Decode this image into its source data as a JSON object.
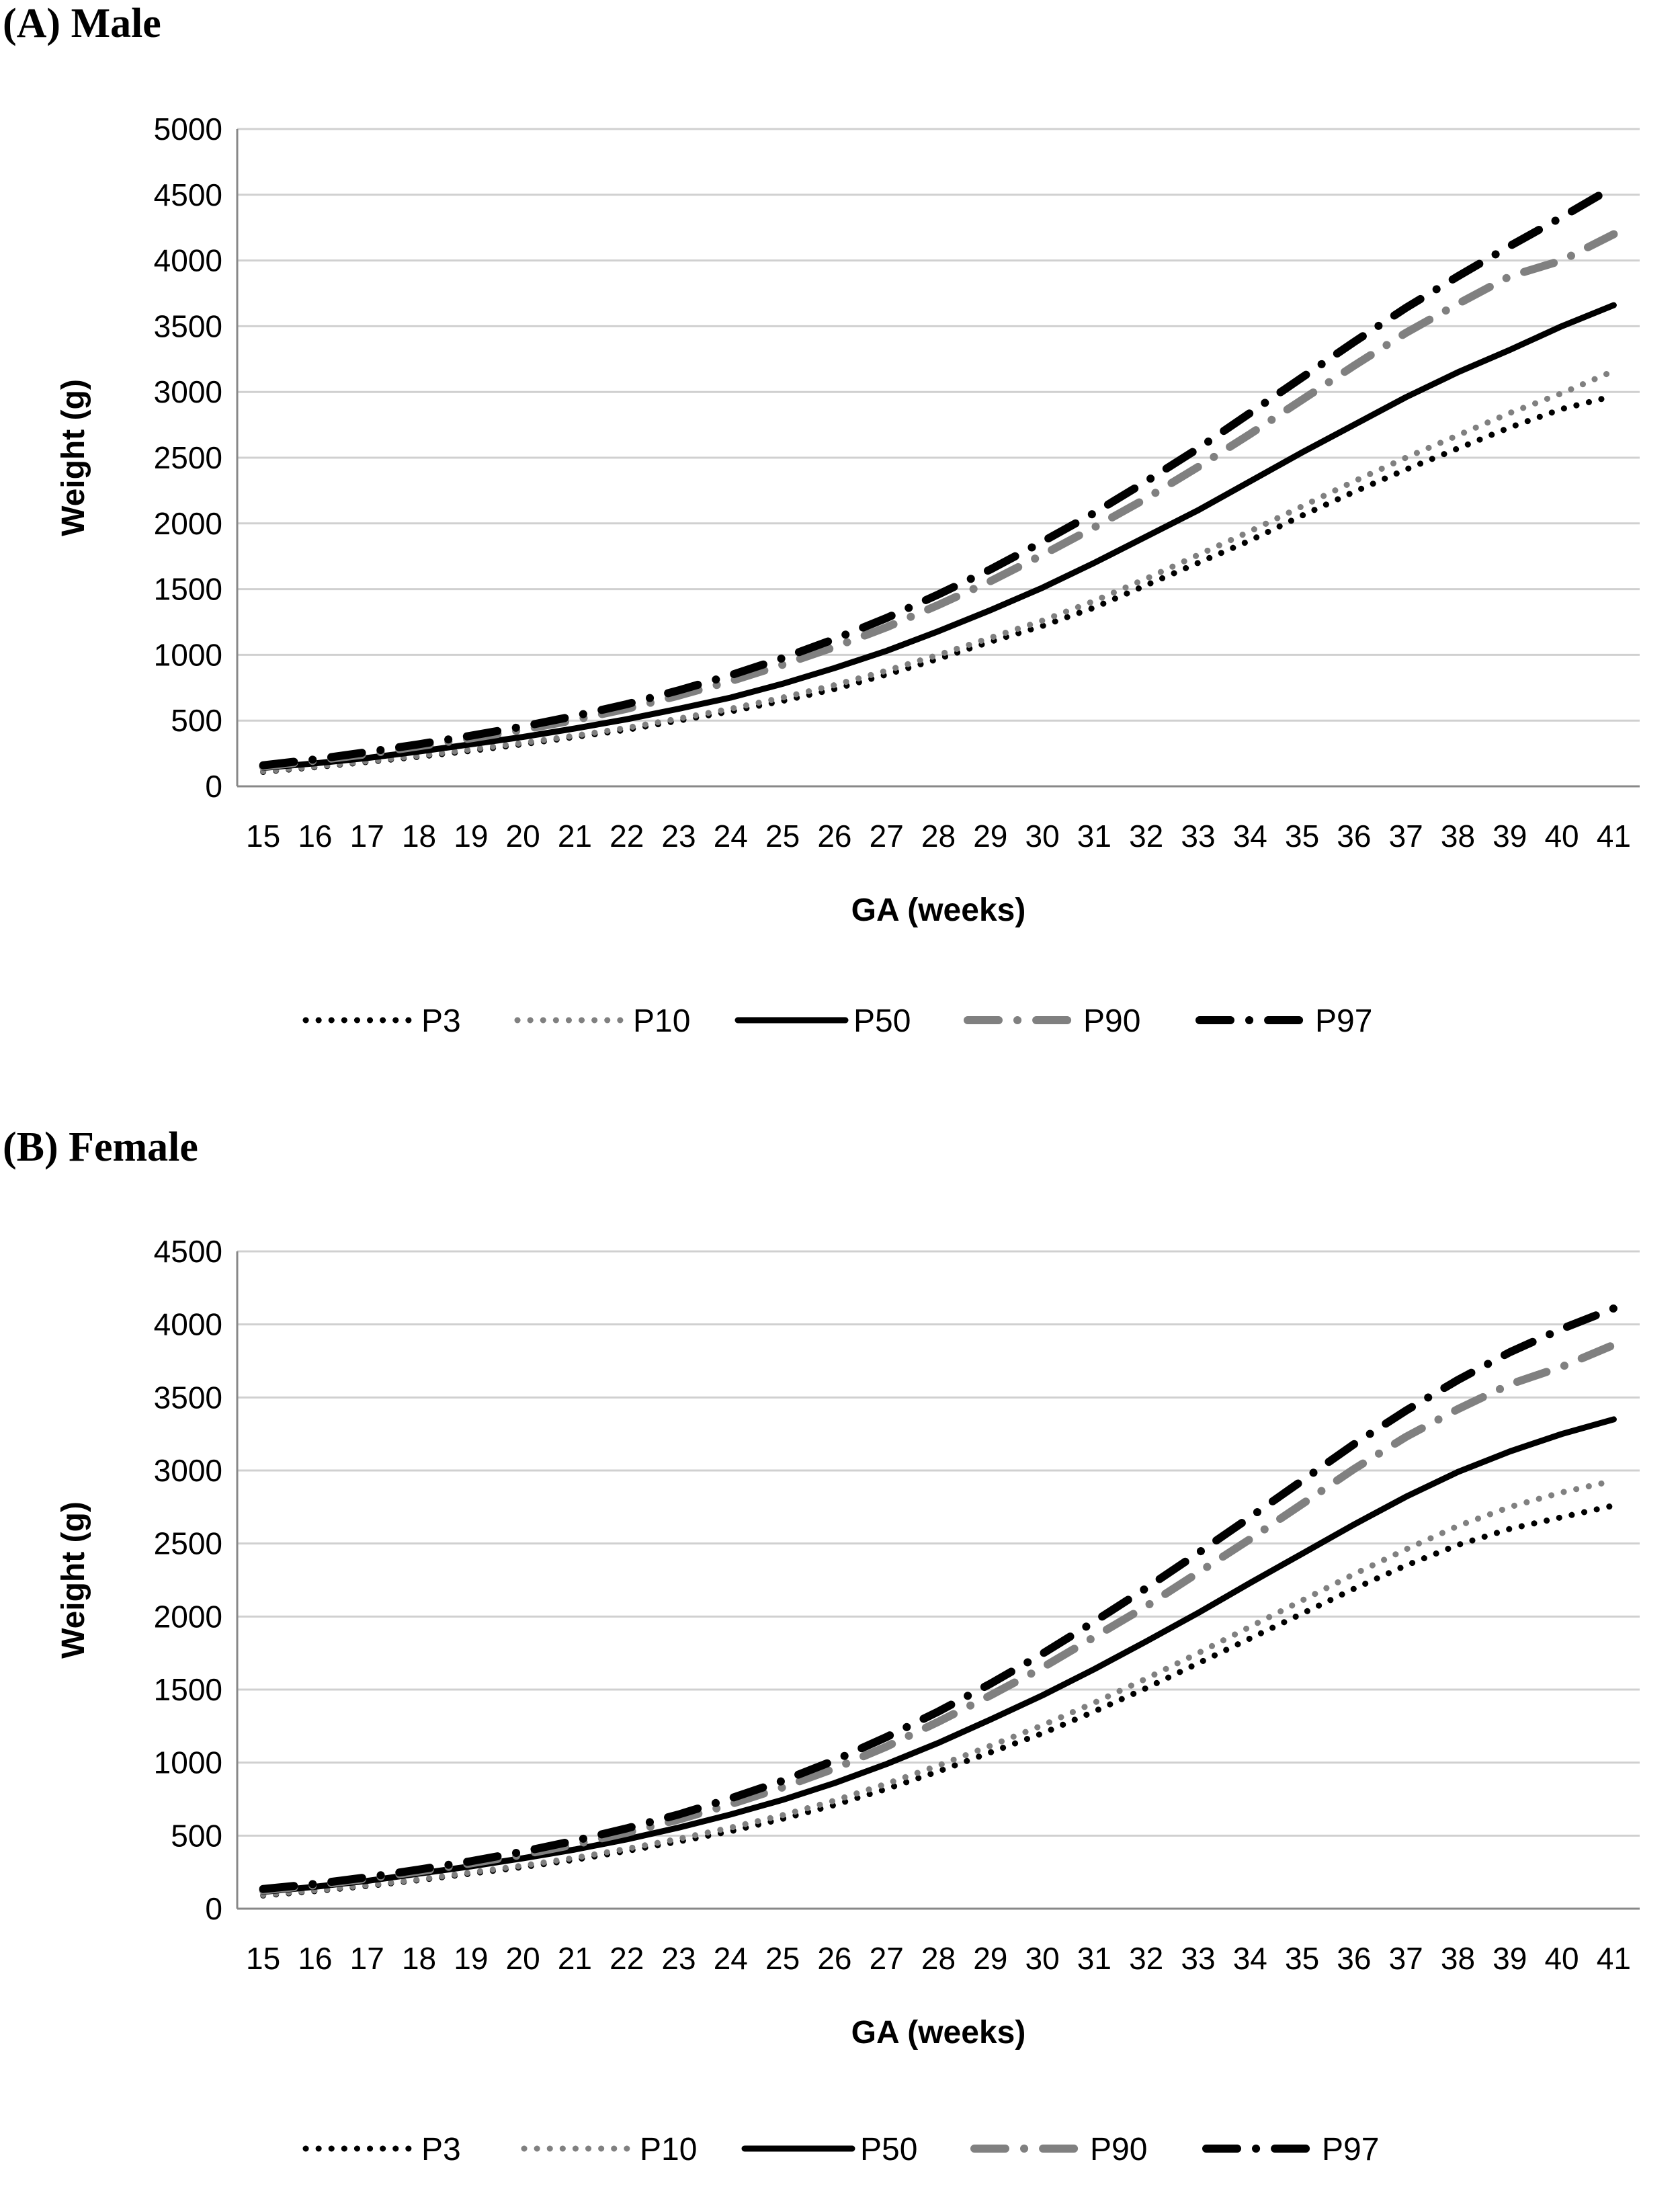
{
  "panels": [
    {
      "title": "(A) Male"
    },
    {
      "title": "(B) Female"
    }
  ],
  "chart_data": [
    {
      "type": "line",
      "title": "(A) Male",
      "xlabel": "GA (weeks)",
      "ylabel": "Weight (g)",
      "ylim": [
        0,
        5000
      ],
      "yticks": [
        0,
        500,
        1000,
        1500,
        2000,
        2500,
        3000,
        3500,
        4000,
        4500,
        5000
      ],
      "x": [
        15,
        16,
        17,
        18,
        19,
        20,
        21,
        22,
        23,
        24,
        25,
        26,
        27,
        28,
        29,
        30,
        31,
        32,
        33,
        34,
        35,
        36,
        37,
        38,
        39,
        40,
        41
      ],
      "grid": true,
      "legend_position": "bottom",
      "series": [
        {
          "name": "P3",
          "color": "#000000",
          "style": "dotted",
          "values": [
            110,
            145,
            185,
            225,
            270,
            320,
            375,
            430,
            500,
            570,
            650,
            740,
            850,
            970,
            1100,
            1220,
            1360,
            1530,
            1700,
            1870,
            2060,
            2240,
            2410,
            2570,
            2730,
            2870,
            2970
          ]
        },
        {
          "name": "P10",
          "color": "#808080",
          "style": "dotted",
          "values": [
            115,
            150,
            190,
            232,
            280,
            330,
            385,
            445,
            515,
            590,
            675,
            770,
            880,
            1000,
            1130,
            1260,
            1410,
            1580,
            1760,
            1940,
            2130,
            2320,
            2500,
            2670,
            2840,
            2990,
            3160
          ]
        },
        {
          "name": "P50",
          "color": "#000000",
          "style": "solid",
          "values": [
            140,
            175,
            215,
            265,
            320,
            375,
            440,
            510,
            590,
            675,
            780,
            900,
            1030,
            1180,
            1340,
            1510,
            1700,
            1900,
            2100,
            2320,
            2540,
            2750,
            2960,
            3150,
            3320,
            3500,
            3660
          ]
        },
        {
          "name": "P90",
          "color": "#808080",
          "style": "dashdot",
          "values": [
            150,
            195,
            245,
            305,
            365,
            430,
            505,
            590,
            690,
            800,
            925,
            1060,
            1210,
            1380,
            1560,
            1760,
            1970,
            2190,
            2430,
            2680,
            2940,
            3200,
            3450,
            3670,
            3880,
            4000,
            4200
          ]
        },
        {
          "name": "P97",
          "color": "#000000",
          "style": "dashdot",
          "values": [
            160,
            205,
            260,
            320,
            385,
            455,
            535,
            625,
            730,
            845,
            975,
            1120,
            1280,
            1460,
            1650,
            1860,
            2080,
            2320,
            2570,
            2840,
            3110,
            3380,
            3640,
            3880,
            4110,
            4330,
            4560
          ]
        }
      ]
    },
    {
      "type": "line",
      "title": "(B) Female",
      "xlabel": "GA (weeks)",
      "ylabel": "Weight (g)",
      "ylim": [
        0,
        4500
      ],
      "yticks": [
        0,
        500,
        1000,
        1500,
        2000,
        2500,
        3000,
        3500,
        4000,
        4500
      ],
      "x": [
        15,
        16,
        17,
        18,
        19,
        20,
        21,
        22,
        23,
        24,
        25,
        26,
        27,
        28,
        29,
        30,
        31,
        32,
        33,
        34,
        35,
        36,
        37,
        38,
        39,
        40,
        41
      ],
      "grid": true,
      "legend_position": "bottom",
      "series": [
        {
          "name": "P3",
          "color": "#000000",
          "style": "dotted",
          "values": [
            90,
            120,
            155,
            195,
            240,
            285,
            335,
            395,
            460,
            530,
            615,
            710,
            820,
            940,
            1070,
            1200,
            1350,
            1510,
            1680,
            1850,
            2020,
            2190,
            2350,
            2490,
            2600,
            2680,
            2760
          ]
        },
        {
          "name": "P10",
          "color": "#808080",
          "style": "dotted",
          "values": [
            95,
            125,
            160,
            200,
            248,
            295,
            348,
            410,
            478,
            555,
            640,
            740,
            855,
            980,
            1115,
            1255,
            1410,
            1575,
            1750,
            1930,
            2110,
            2290,
            2460,
            2620,
            2750,
            2850,
            2930
          ]
        },
        {
          "name": "P50",
          "color": "#000000",
          "style": "solid",
          "values": [
            115,
            150,
            190,
            240,
            290,
            345,
            405,
            475,
            555,
            645,
            745,
            860,
            990,
            1135,
            1295,
            1460,
            1640,
            1830,
            2025,
            2230,
            2430,
            2630,
            2820,
            2990,
            3130,
            3250,
            3350
          ]
        },
        {
          "name": "P90",
          "color": "#808080",
          "style": "dashdot",
          "values": [
            125,
            160,
            205,
            255,
            310,
            370,
            440,
            520,
            610,
            715,
            830,
            960,
            1110,
            1280,
            1460,
            1650,
            1860,
            2070,
            2300,
            2530,
            2770,
            3010,
            3230,
            3420,
            3590,
            3710,
            3860
          ]
        },
        {
          "name": "P97",
          "color": "#000000",
          "style": "dashdot",
          "values": [
            135,
            170,
            215,
            268,
            325,
            390,
            465,
            550,
            645,
            755,
            875,
            1015,
            1175,
            1350,
            1540,
            1745,
            1965,
            2195,
            2435,
            2680,
            2930,
            3180,
            3410,
            3620,
            3810,
            3970,
            4110
          ]
        }
      ]
    }
  ]
}
